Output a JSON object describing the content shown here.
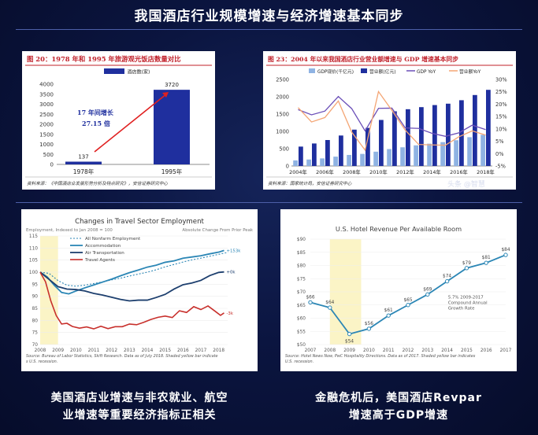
{
  "page": {
    "title": "我国酒店行业规模增速与经济增速基本同步",
    "watermark": "头条 @智慧",
    "caption_left": [
      "美国酒店业增速与非农就业、航空",
      "业增速等重要经济指标正相关"
    ],
    "caption_right": [
      "金融危机后，美国酒店Revpar",
      "增速高于GDP增速"
    ]
  },
  "colors": {
    "background": "#0b1540",
    "bar_dark": "#1f2f9e",
    "bar_light": "#8fb3e3",
    "line_purple": "#6b4fb8",
    "line_orange": "#f4a574",
    "red_title": "#c0202a",
    "teal": "#2b86b5",
    "navy": "#1d3f6e",
    "red_line": "#c8302c",
    "yellow_band": "#fbf4c6"
  },
  "chart_data": [
    {
      "type": "bar",
      "title": "图 20：1978 年和 1995 年旅游观光饭店数量对比",
      "legend": [
        "酒店数(家)"
      ],
      "categories": [
        "1978年",
        "1995年"
      ],
      "values": [
        137,
        3720
      ],
      "ylim": [
        0,
        4000
      ],
      "yticks": [
        0,
        500,
        1000,
        1500,
        2000,
        2500,
        3000,
        3500,
        4000
      ],
      "annotation": [
        "17 年间增长",
        "27.15 倍"
      ],
      "source": "资料来源：《中国酒店业发展形势分析及特点研究》，安信证券研究中心"
    },
    {
      "type": "bar",
      "title": "图 23：2004 年以来我国酒店行业营业额增速与 GDP 增速基本同步",
      "legend": [
        "GDP现价(千亿元)",
        "营业额(亿元)",
        "GDP YoY",
        "营业额YoY"
      ],
      "x": [
        2004,
        2005,
        2006,
        2007,
        2008,
        2009,
        2010,
        2011,
        2012,
        2013,
        2014,
        2015,
        2016,
        2017,
        2018
      ],
      "xtick_labels": [
        "2004年",
        "2006年",
        "2008年",
        "2010年",
        "2012年",
        "2014年",
        "2016年",
        "2018年"
      ],
      "series": [
        {
          "name": "GDP现价(千亿元)",
          "axis": "left",
          "values": [
            161,
            187,
            219,
            270,
            319,
            349,
            413,
            489,
            540,
            596,
            644,
            689,
            744,
            832,
            900
          ]
        },
        {
          "name": "营业额(亿元)",
          "axis": "left",
          "values": [
            560,
            650,
            750,
            880,
            1050,
            1100,
            1330,
            1580,
            1640,
            1700,
            1760,
            1800,
            1900,
            2050,
            2200
          ]
        },
        {
          "name": "GDP YoY",
          "axis": "right",
          "values": [
            17.8,
            15.7,
            17.2,
            23.1,
            18.2,
            9.2,
            18.3,
            18.4,
            10.4,
            10.2,
            8.2,
            7.0,
            8.4,
            11.5,
            9.7
          ]
        },
        {
          "name": "营业额YoY",
          "axis": "right",
          "values": [
            18.6,
            12.8,
            14.6,
            21.3,
            8.7,
            1.4,
            25.1,
            17.5,
            9.5,
            3.7,
            3.5,
            3.4,
            6.8,
            9.2,
            7.5
          ]
        }
      ],
      "ylim_left": [
        0,
        2500
      ],
      "yticks_left": [
        0,
        500,
        1000,
        1500,
        2000,
        2500
      ],
      "ylim_right": [
        -5,
        30
      ],
      "yticks_right": [
        "-5%",
        "0%",
        "5%",
        "10%",
        "15%",
        "20%",
        "25%",
        "30%"
      ],
      "source": "资料来源：国家统计局，安信证券研究中心"
    },
    {
      "type": "line",
      "title": "Changes in Travel Sector Employment",
      "subtitle_left": "Employment, Indexed to Jan 2008 = 100",
      "subtitle_right": "Absolute Change From Prior Peak",
      "ylim": [
        70,
        115
      ],
      "yticks": [
        70,
        75,
        80,
        85,
        90,
        95,
        100,
        105,
        110,
        115
      ],
      "xticks": [
        2008,
        2009,
        2010,
        2011,
        2012,
        2013,
        2014,
        2015,
        2016,
        2017,
        2018
      ],
      "shaded": [
        2008,
        2009
      ],
      "series": [
        {
          "name": "All Nonfarm Employment",
          "end_label": "",
          "points": [
            [
              2008,
              100
            ],
            [
              2008.5,
              99.5
            ],
            [
              2009,
              96.5
            ],
            [
              2009.5,
              94.6
            ],
            [
              2010,
              94.2
            ],
            [
              2010.5,
              94.6
            ],
            [
              2011,
              95.3
            ],
            [
              2011.5,
              96
            ],
            [
              2012,
              96.8
            ],
            [
              2012.5,
              97.5
            ],
            [
              2013,
              98.4
            ],
            [
              2013.5,
              99.2
            ],
            [
              2014,
              100
            ],
            [
              2014.5,
              101
            ],
            [
              2015,
              102.2
            ],
            [
              2015.5,
              103.2
            ],
            [
              2016,
              104.2
            ],
            [
              2016.5,
              105.1
            ],
            [
              2017,
              105.8
            ],
            [
              2017.5,
              106.6
            ],
            [
              2018,
              107.4
            ],
            [
              2018.5,
              108.2
            ]
          ]
        },
        {
          "name": "Accommodation",
          "end_label": "+153k",
          "points": [
            [
              2008,
              100
            ],
            [
              2008.4,
              98
            ],
            [
              2008.8,
              94.5
            ],
            [
              2009.2,
              91.6
            ],
            [
              2009.6,
              91
            ],
            [
              2010,
              92.2
            ],
            [
              2010.5,
              93.5
            ],
            [
              2011,
              94.7
            ],
            [
              2011.5,
              95.9
            ],
            [
              2012,
              97.1
            ],
            [
              2012.5,
              98.5
            ],
            [
              2013,
              99.8
            ],
            [
              2013.5,
              100.9
            ],
            [
              2014,
              102.1
            ],
            [
              2014.5,
              102.9
            ],
            [
              2015,
              104.1
            ],
            [
              2015.5,
              104.7
            ],
            [
              2016,
              105.8
            ],
            [
              2016.5,
              106.3
            ],
            [
              2017,
              106.8
            ],
            [
              2017.5,
              107.6
            ],
            [
              2018,
              108.3
            ],
            [
              2018.3,
              109
            ]
          ]
        },
        {
          "name": "Air Transportation",
          "end_label": "+0k",
          "points": [
            [
              2008,
              100
            ],
            [
              2008.5,
              97
            ],
            [
              2009,
              94
            ],
            [
              2009.5,
              93
            ],
            [
              2010,
              92.8
            ],
            [
              2010.5,
              92.2
            ],
            [
              2011,
              91.2
            ],
            [
              2011.5,
              90.5
            ],
            [
              2012,
              89.6
            ],
            [
              2012.5,
              88.7
            ],
            [
              2013,
              88.1
            ],
            [
              2013.5,
              88.4
            ],
            [
              2014,
              88.4
            ],
            [
              2014.5,
              89.5
            ],
            [
              2015,
              90.8
            ],
            [
              2015.5,
              93
            ],
            [
              2016,
              94.8
            ],
            [
              2016.5,
              95.5
            ],
            [
              2017,
              96.6
            ],
            [
              2017.5,
              98.6
            ],
            [
              2018,
              99.9
            ],
            [
              2018.3,
              100.1
            ]
          ]
        },
        {
          "name": "Travel Agents",
          "end_label": "-3k",
          "points": [
            [
              2008,
              100
            ],
            [
              2008.3,
              96
            ],
            [
              2008.6,
              88
            ],
            [
              2008.9,
              82
            ],
            [
              2009.2,
              78.5
            ],
            [
              2009.5,
              78.8
            ],
            [
              2009.8,
              77.5
            ],
            [
              2010.2,
              76.8
            ],
            [
              2010.6,
              77.3
            ],
            [
              2011,
              76.5
            ],
            [
              2011.4,
              77.6
            ],
            [
              2011.8,
              76.6
            ],
            [
              2012.2,
              77.4
            ],
            [
              2012.6,
              77.4
            ],
            [
              2013,
              78.5
            ],
            [
              2013.4,
              78.2
            ],
            [
              2013.8,
              79.2
            ],
            [
              2014.2,
              80.4
            ],
            [
              2014.6,
              81.3
            ],
            [
              2015,
              81.8
            ],
            [
              2015.4,
              81.2
            ],
            [
              2015.8,
              84
            ],
            [
              2016.2,
              83.3
            ],
            [
              2016.6,
              85.7
            ],
            [
              2017,
              84.5
            ],
            [
              2017.4,
              86
            ],
            [
              2017.8,
              83.8
            ],
            [
              2018.1,
              82.1
            ],
            [
              2018.3,
              83.1
            ]
          ]
        }
      ],
      "source": "Source: Bureau of Labor Statistics, Skift Research. Data as of July 2018. Shaded yellow bar indicates U.S. recession."
    },
    {
      "type": "line",
      "title": "U.S. Hotel Revenue Per Available Room",
      "ylim": [
        50,
        90
      ],
      "yticks": [
        "$50",
        "$55",
        "$60",
        "$65",
        "$70",
        "$75",
        "$80",
        "$85",
        "$90"
      ],
      "xticks": [
        2007,
        2008,
        2009,
        2010,
        2011,
        2012,
        2013,
        2014,
        2015,
        2016,
        2017
      ],
      "shaded": [
        2008,
        2009.6
      ],
      "series": [
        {
          "name": "RevPAR",
          "x": [
            2007,
            2008,
            2009,
            2010,
            2011,
            2012,
            2013,
            2014,
            2015,
            2016,
            2017
          ],
          "values": [
            66,
            64,
            54,
            56,
            61,
            65,
            69,
            74,
            79,
            81,
            84
          ],
          "labels": [
            "$66",
            "$64",
            "$54",
            "$56",
            "$61",
            "$65",
            "$69",
            "$74",
            "$79",
            "$81",
            "$84"
          ]
        }
      ],
      "annotation": [
        "5.7% 2009-2017",
        "Compound Annual",
        "Growth Rate"
      ],
      "source": "Source: Hotel News Now, PwC Hospitality Directions. Data as of 2017. Shaded yellow bar indicates U.S. recession."
    }
  ]
}
